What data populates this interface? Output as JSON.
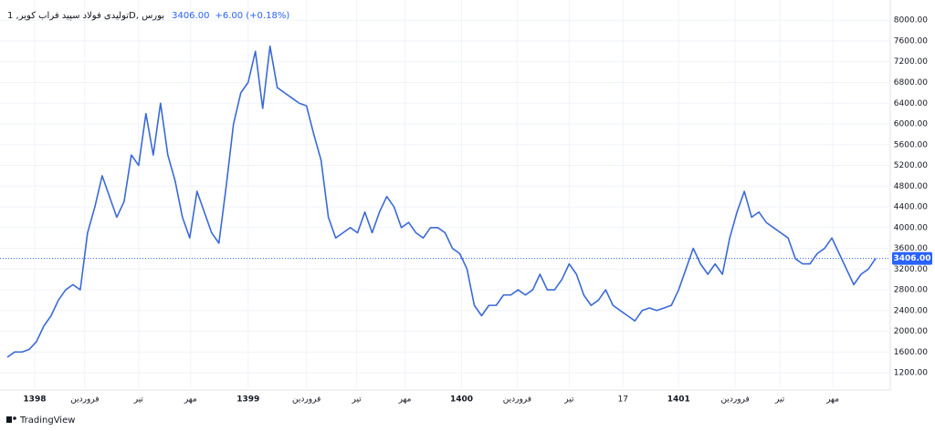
{
  "chart_data": {
    "type": "line",
    "title": "تولیدی فولاد سپید فراب کویر, 1D, بورس",
    "price": "3406.00",
    "change": "+6.00 (+0.18%)",
    "brand": "TradingView",
    "x": [
      0,
      1,
      2,
      3,
      4,
      5,
      6,
      7,
      8,
      9,
      10,
      11,
      12,
      13,
      14,
      15,
      16,
      17,
      18,
      19,
      20,
      21,
      22,
      23,
      24,
      25,
      26,
      27,
      28,
      29,
      30,
      31,
      32,
      33,
      34,
      35,
      36,
      37,
      38,
      39,
      40,
      41,
      42,
      43,
      44,
      45,
      46,
      47,
      48,
      49,
      50,
      51,
      52,
      53,
      54,
      55,
      56,
      57,
      58,
      59,
      60,
      61,
      62,
      63,
      64,
      65,
      66,
      67,
      68,
      69,
      70,
      71,
      72,
      73,
      74,
      75,
      76,
      77,
      78,
      79,
      80,
      81,
      82,
      83,
      84,
      85,
      86,
      87,
      88,
      89,
      90,
      91,
      92,
      93,
      94,
      95,
      96,
      97,
      98,
      99,
      100,
      101,
      102,
      103,
      104,
      105,
      106,
      107,
      108,
      109,
      110,
      111,
      112,
      113,
      114,
      115,
      116,
      117,
      118,
      119
    ],
    "series": [
      {
        "color": "#3a6ad6",
        "values": [
          1500,
          1600,
          1600,
          1650,
          1800,
          2100,
          2300,
          2600,
          2800,
          2900,
          2800,
          3900,
          4400,
          5000,
          4600,
          4200,
          4500,
          5400,
          5200,
          6200,
          5400,
          6400,
          5400,
          4900,
          4200,
          3800,
          4700,
          4300,
          3900,
          3700,
          4800,
          6000,
          6600,
          6800,
          7400,
          6300,
          7500,
          6700,
          6600,
          6500,
          6400,
          6350,
          5800,
          5300,
          4200,
          3800,
          3900,
          4000,
          3900,
          4300,
          3900,
          4300,
          4600,
          4400,
          4000,
          4100,
          3900,
          3800,
          4000,
          4000,
          3900,
          3600,
          3500,
          3200,
          2500,
          2300,
          2500,
          2500,
          2700,
          2700,
          2800,
          2700,
          2800,
          3100,
          2800,
          2800,
          3000,
          3300,
          3100,
          2700,
          2500,
          2600,
          2800,
          2500,
          2400,
          2300,
          2200,
          2400,
          2450,
          2400,
          2450,
          2500,
          2800,
          3200,
          3600,
          3300,
          3100,
          3300,
          3100,
          3800,
          4300,
          4700,
          4200,
          4300,
          4100,
          4000,
          3900,
          3800,
          3400,
          3300,
          3300,
          3500,
          3600,
          3800,
          3500,
          3200,
          2900,
          3100,
          3200,
          3406
        ]
      }
    ],
    "xlim": [
      -1,
      121
    ],
    "ylim": [
      920,
      8180
    ],
    "xticks": [
      {
        "value": 3.75,
        "label": "1398"
      },
      {
        "value": 10.625,
        "label": "فروردین"
      },
      {
        "value": 18,
        "label": "تیر"
      },
      {
        "value": 25.125,
        "label": "مهر"
      },
      {
        "value": 33,
        "label": "1399"
      },
      {
        "value": 41,
        "label": "فروردین"
      },
      {
        "value": 47.875,
        "label": "تیر"
      },
      {
        "value": 54.5,
        "label": "مهر"
      },
      {
        "value": 62.25,
        "label": "1400"
      },
      {
        "value": 69.875,
        "label": "فروردین"
      },
      {
        "value": 77,
        "label": "تیر"
      },
      {
        "value": 84.375,
        "label": "17"
      },
      {
        "value": 92,
        "label": "1401"
      },
      {
        "value": 99.75,
        "label": "فروردین"
      },
      {
        "value": 105.875,
        "label": "تیر"
      },
      {
        "value": 113.125,
        "label": "مهر"
      }
    ],
    "yticks": [
      {
        "value": 1200,
        "label": "1200.00"
      },
      {
        "value": 1600,
        "label": "1600.00"
      },
      {
        "value": 2000,
        "label": "2000.00"
      },
      {
        "value": 2400,
        "label": "2400.00"
      },
      {
        "value": 2800,
        "label": "2800.00"
      },
      {
        "value": 3200,
        "label": "3200.00"
      },
      {
        "value": 3600,
        "label": "3600.00"
      },
      {
        "value": 4000,
        "label": "4000.00"
      },
      {
        "value": 4400,
        "label": "4400.00"
      },
      {
        "value": 4800,
        "label": "4800.00"
      },
      {
        "value": 5200,
        "label": "5200.00"
      },
      {
        "value": 5600,
        "label": "5600.00"
      },
      {
        "value": 6000,
        "label": "6000.00"
      },
      {
        "value": 6400,
        "label": "6400.00"
      },
      {
        "value": 6800,
        "label": "6800.00"
      },
      {
        "value": 7200,
        "label": "7200.00"
      },
      {
        "value": 7600,
        "label": "7600.00"
      },
      {
        "value": 8000,
        "label": "8000.00"
      }
    ],
    "last_price": {
      "value": 3406,
      "label": "3406.00"
    },
    "grid": true
  }
}
